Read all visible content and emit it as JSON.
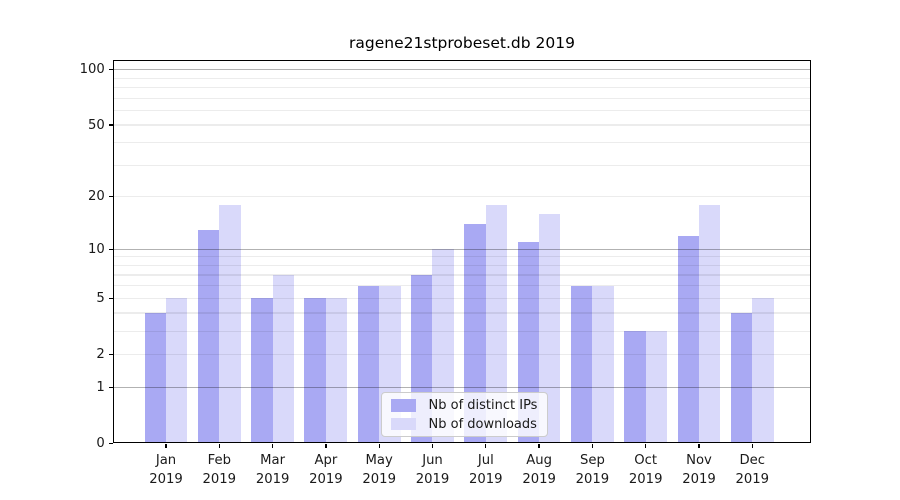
{
  "chart_data": {
    "type": "bar",
    "title": "ragene21stprobeset.db 2019",
    "categories": [
      "Jan",
      "Feb",
      "Mar",
      "Apr",
      "May",
      "Jun",
      "Jul",
      "Aug",
      "Sep",
      "Oct",
      "Nov",
      "Dec"
    ],
    "category_year": "2019",
    "series": [
      {
        "name": "Nb of distinct IPs",
        "color": "#a9a9f3",
        "values": [
          4,
          13,
          5,
          5,
          6,
          7,
          14,
          11,
          6,
          3,
          12,
          4
        ]
      },
      {
        "name": "Nb of downloads",
        "color": "#d9d9fa",
        "values": [
          5,
          18,
          7,
          5,
          6,
          10,
          18,
          16,
          6,
          3,
          18,
          5
        ]
      }
    ],
    "y_scale": "log1p",
    "ylim": [
      0,
      113
    ],
    "y_tick_labels": [
      0,
      1,
      2,
      5,
      10,
      20,
      50,
      100
    ],
    "y_grid_major": [
      1,
      10,
      100
    ],
    "y_grid_minor": [
      2,
      3,
      4,
      5,
      6,
      7,
      8,
      9,
      20,
      30,
      40,
      50,
      60,
      70,
      80,
      90
    ],
    "grid": true,
    "legend_position": "lower-center",
    "xlabel": "",
    "ylabel": ""
  }
}
